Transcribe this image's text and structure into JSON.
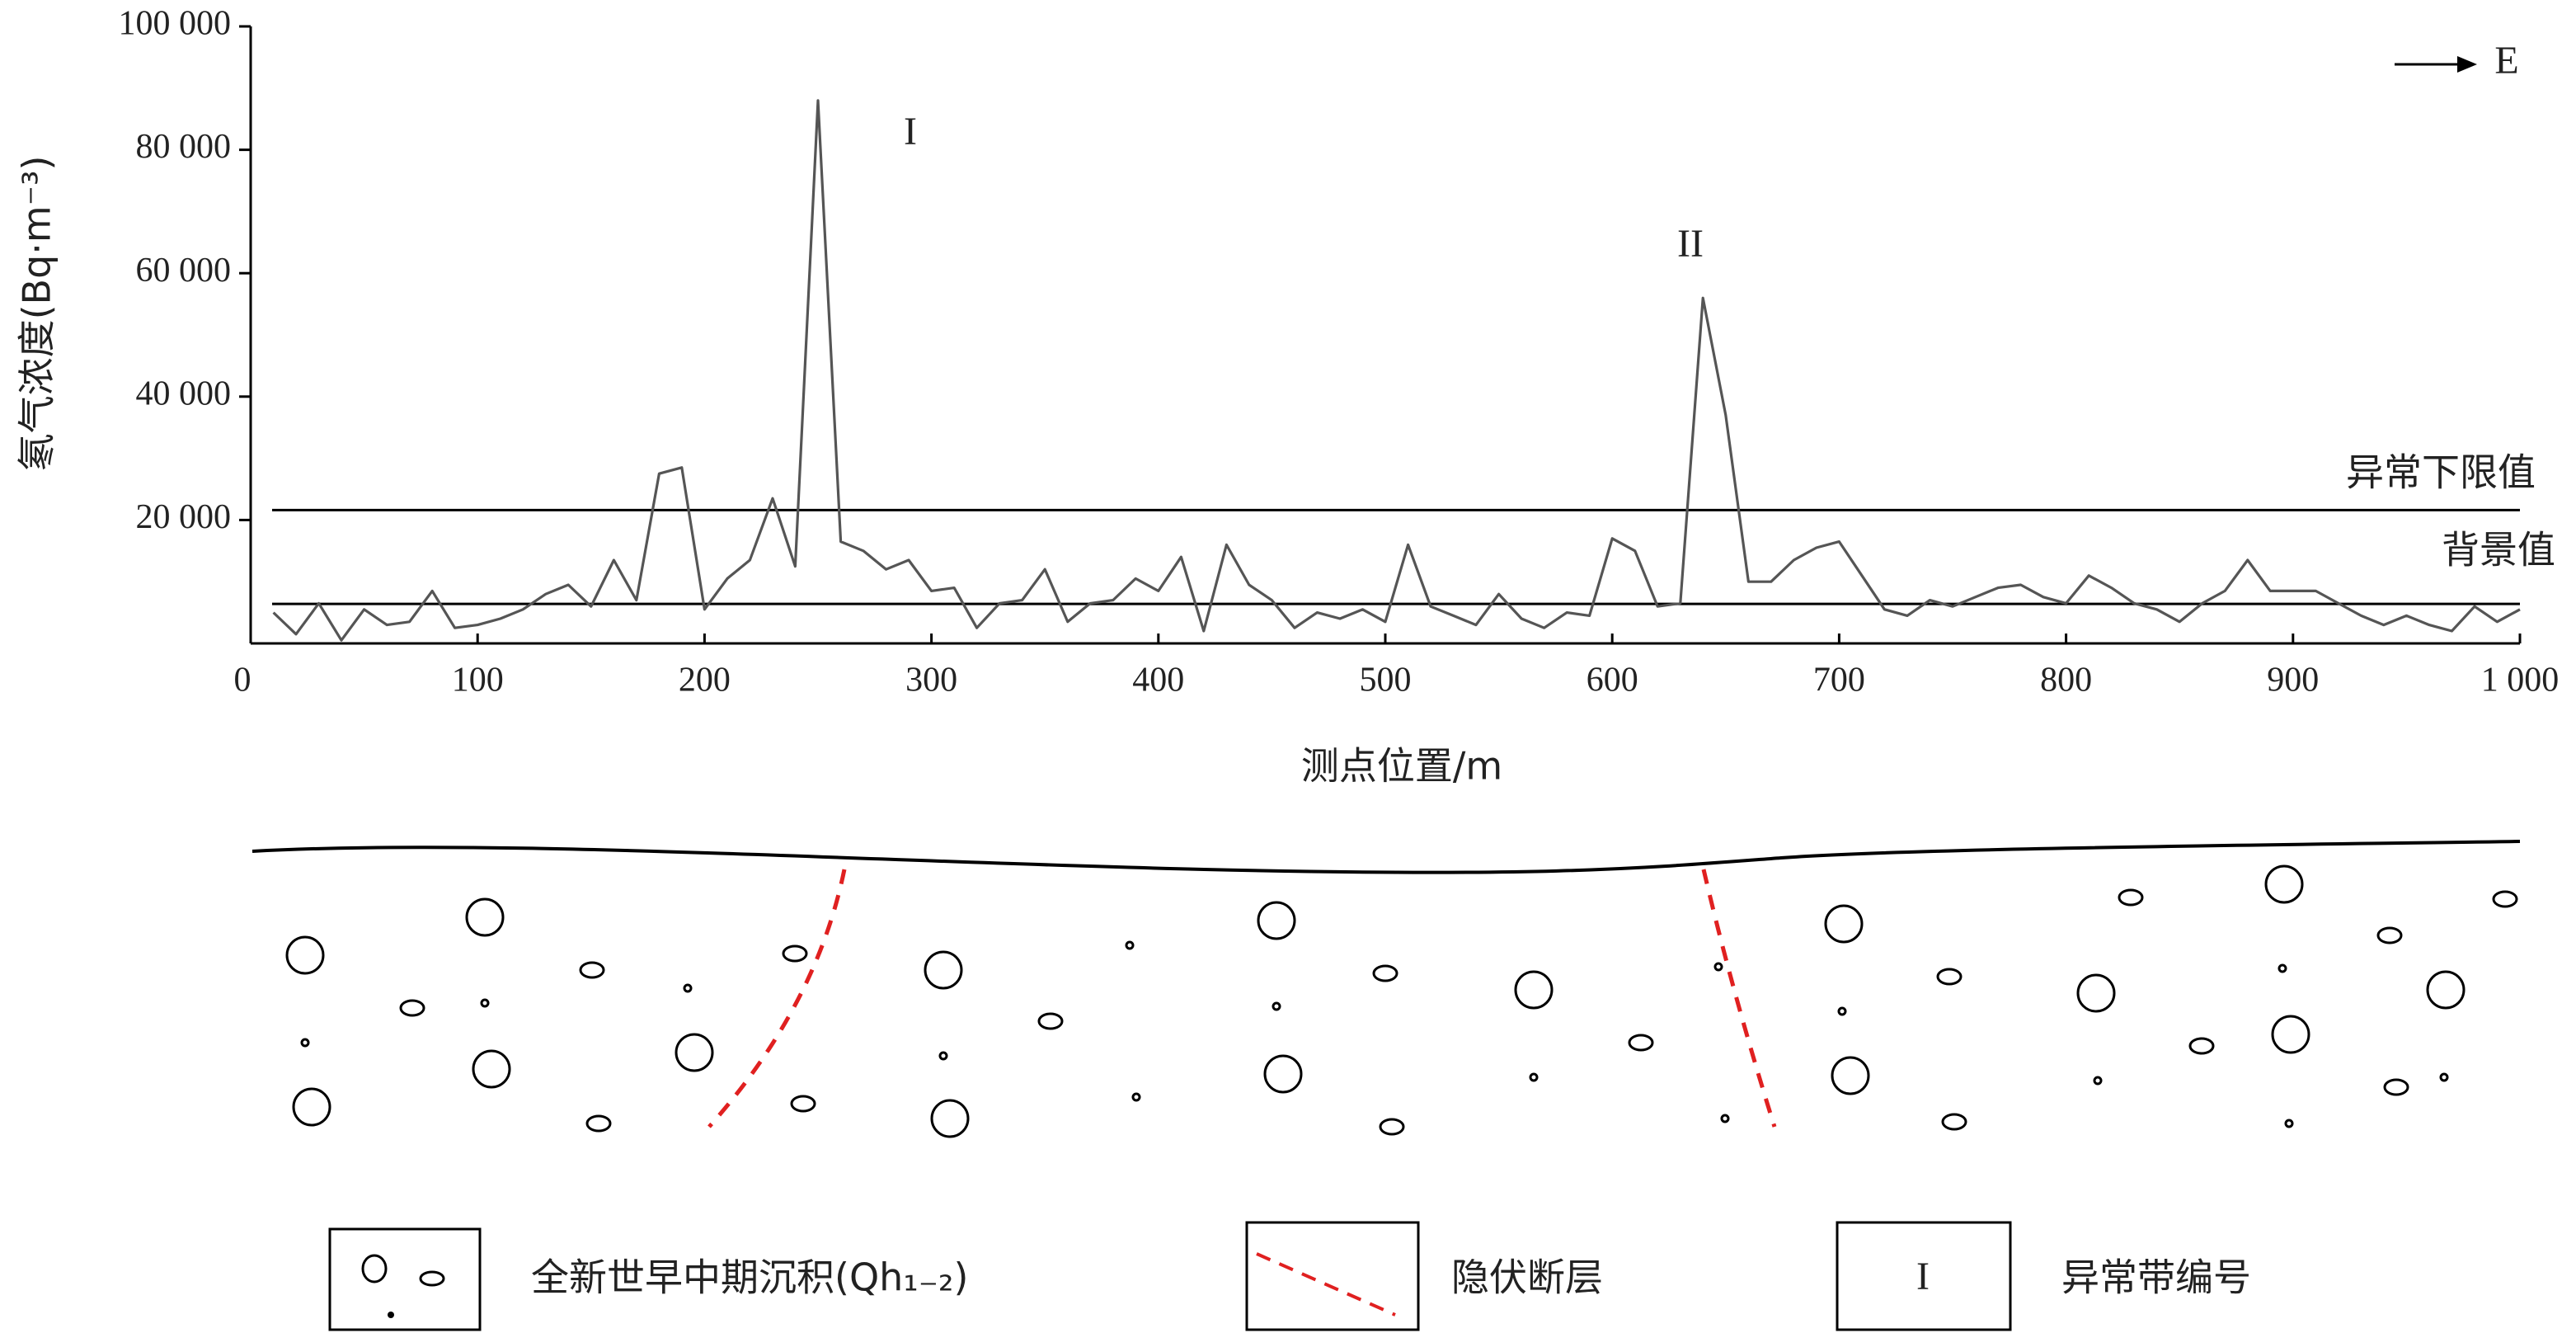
{
  "chart_data": {
    "type": "line",
    "y_label": "氡气浓度(Bq·m⁻³)",
    "x_label": "测点位置/m",
    "x": [
      10,
      20,
      30,
      40,
      50,
      60,
      70,
      80,
      90,
      100,
      110,
      120,
      130,
      140,
      150,
      160,
      170,
      180,
      190,
      200,
      210,
      220,
      230,
      240,
      250,
      260,
      270,
      280,
      290,
      300,
      310,
      320,
      330,
      340,
      350,
      360,
      370,
      380,
      390,
      400,
      410,
      420,
      430,
      440,
      450,
      460,
      470,
      480,
      490,
      500,
      510,
      520,
      530,
      540,
      550,
      560,
      570,
      580,
      590,
      600,
      610,
      620,
      630,
      640,
      650,
      660,
      670,
      680,
      690,
      700,
      710,
      720,
      730,
      740,
      750,
      760,
      770,
      780,
      790,
      800,
      810,
      820,
      830,
      840,
      850,
      860,
      870,
      880,
      890,
      900,
      910,
      920,
      930,
      940,
      950,
      960,
      970,
      980,
      990,
      1000
    ],
    "values": [
      5000,
      1500,
      6500,
      500,
      5500,
      3000,
      3500,
      8500,
      2500,
      3000,
      4000,
      5500,
      8000,
      9500,
      6000,
      13500,
      7000,
      27500,
      28500,
      5500,
      10500,
      13500,
      23500,
      12500,
      88000,
      16500,
      15000,
      12000,
      13500,
      8500,
      9000,
      2500,
      6500,
      7000,
      12000,
      3500,
      6500,
      7000,
      10500,
      8500,
      14000,
      2000,
      16000,
      9500,
      7000,
      2500,
      5000,
      4000,
      5500,
      3500,
      16000,
      6000,
      4500,
      3000,
      8000,
      4000,
      2500,
      5000,
      4500,
      17000,
      15000,
      6000,
      6500,
      56000,
      37000,
      10000,
      10000,
      13500,
      15500,
      16500,
      11000,
      5500,
      4500,
      7000,
      6000,
      7500,
      9000,
      9500,
      7500,
      6500,
      11000,
      9000,
      6500,
      5500,
      3500,
      6500,
      8500,
      13500,
      8500,
      8500,
      8500,
      6500,
      4500,
      3000,
      4500,
      3000,
      2000,
      6000,
      3500,
      5500
    ],
    "color": "#555555",
    "xlim": [
      0,
      1000
    ],
    "xticks": [
      0,
      100,
      200,
      300,
      400,
      500,
      600,
      700,
      800,
      900,
      {
        "value": 1000,
        "label": "1 000"
      }
    ],
    "ylim": [
      0,
      100000
    ],
    "yticks": [
      {
        "value": 20000,
        "label": "20 000"
      },
      {
        "value": 40000,
        "label": "40 000"
      },
      {
        "value": 60000,
        "label": "60 000"
      },
      {
        "value": 80000,
        "label": "80 000"
      },
      {
        "value": 100000,
        "label": "100 000"
      }
    ],
    "reference_lines": [
      {
        "value": 21600,
        "label": "异常下限值"
      },
      {
        "value": 6400,
        "label": "背景值"
      }
    ],
    "annotations": [
      "I",
      "II",
      "E"
    ]
  },
  "legend_panel": {
    "items": [
      {
        "label": "全新世早中期沉积(Qh₁₋₂)"
      },
      {
        "label": "隐伏断层"
      },
      {
        "symbol": "I",
        "label": "异常带编号"
      }
    ]
  }
}
